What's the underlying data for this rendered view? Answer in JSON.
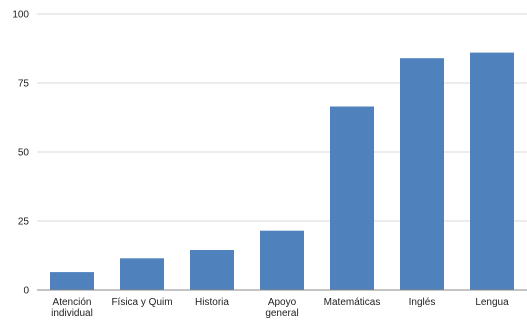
{
  "chart_data": {
    "type": "bar",
    "title": "",
    "xlabel": "",
    "ylabel": "",
    "categories": [
      [
        "Atención",
        "individual"
      ],
      [
        "Física y Quim"
      ],
      [
        "Historia"
      ],
      [
        "Apoyo",
        "general"
      ],
      [
        "Matemáticas"
      ],
      [
        "Inglés"
      ],
      [
        "Lengua"
      ]
    ],
    "values": [
      6.5,
      11.5,
      14.5,
      21.5,
      66.5,
      84,
      86
    ],
    "ylim": [
      0,
      100
    ],
    "yticks": [
      0,
      25,
      50,
      75,
      100
    ],
    "grid": true,
    "legend": "none",
    "colors": {
      "bar": "#4f81bd",
      "grid": "#d9d9d9",
      "axis": "#888888",
      "text": "#222222"
    }
  }
}
